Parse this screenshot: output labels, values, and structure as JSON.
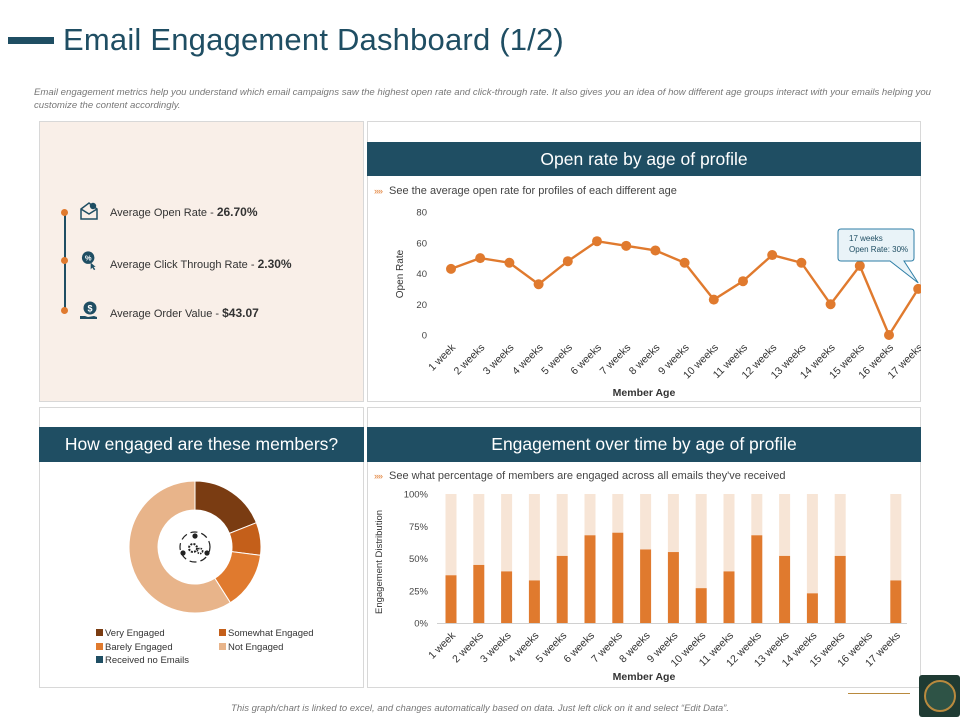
{
  "page": {
    "title": "Email Engagement Dashboard (1/2)",
    "description": "Email engagement metrics help you understand which email campaigns saw the highest open rate and click-through rate. It also gives you an idea of how different age groups interact with your emails helping you customize the content accordingly.",
    "footer": "This graph/chart is linked to excel, and changes automatically based on data. Just left click on it and select “Edit Data”."
  },
  "metrics": [
    {
      "label": "Average Open Rate",
      "value": "26.70%",
      "icon": "envelope-icon"
    },
    {
      "label": "Average Click Through Rate",
      "value": "2.30%",
      "icon": "percent-click-icon"
    },
    {
      "label": "Average Order Value",
      "value": "$43.07",
      "icon": "dollar-hand-icon"
    }
  ],
  "metric_separator": " - ",
  "panels": {
    "open_rate": {
      "title": "Open rate by age of profile",
      "subtitle": "See the average open rate for profiles of each different age",
      "callout_line1": "17 weeks",
      "callout_line2": "Open Rate:  30%"
    },
    "engaged": {
      "title": "How engaged are these members?"
    },
    "over_time": {
      "title": "Engagement over time by age of profile",
      "subtitle": "See what percentage of members are engaged across all emails they've received"
    }
  },
  "subtitle_marker": "››››",
  "colors": {
    "navy": "#1f4e63",
    "orange": "#e07a2e",
    "light_peach": "#f7e5d6",
    "brown": "#7a3c12",
    "mid_orange": "#c45f1a",
    "peach": "#e8b48a"
  },
  "chart_data": [
    {
      "type": "line",
      "title": "Open rate by age of profile",
      "xlabel": "Member Age",
      "ylabel": "Open Rate",
      "ylim": [
        0,
        80
      ],
      "yticks": [
        0,
        20,
        40,
        60,
        80
      ],
      "categories": [
        "1 week",
        "2 weeks",
        "3 weeks",
        "4 weeks",
        "5 weeks",
        "6 weeks",
        "7 weeks",
        "8 weeks",
        "9 weeks",
        "10 weeks",
        "11 weeks",
        "12 weeks",
        "13 weeks",
        "14 weeks",
        "15 weeks",
        "16 weeks",
        "17 weeks"
      ],
      "values": [
        43,
        50,
        47,
        33,
        48,
        61,
        58,
        55,
        47,
        23,
        35,
        52,
        47,
        20,
        45,
        0,
        30
      ]
    },
    {
      "type": "pie",
      "title": "How engaged are these members?",
      "donut": true,
      "labels": [
        "Very Engaged",
        "Somewhat Engaged",
        "Barely Engaged",
        "Not Engaged",
        "Received no Emails"
      ],
      "values": [
        19,
        8,
        14,
        59,
        0
      ],
      "colors": [
        "#7a3c12",
        "#c45f1a",
        "#e07a2e",
        "#e8b48a",
        "#1f4e63"
      ]
    },
    {
      "type": "bar",
      "stacked": true,
      "title": "Engagement over time by age of profile",
      "xlabel": "Member Age",
      "ylabel": "Engagement Distribution",
      "ylim": [
        0,
        100
      ],
      "yticks": [
        "0%",
        "25%",
        "50%",
        "75%",
        "100%"
      ],
      "categories": [
        "1 week",
        "2 weeks",
        "3 weeks",
        "4 weeks",
        "5 weeks",
        "6 weeks",
        "7 weeks",
        "8 weeks",
        "9 weeks",
        "10 weeks",
        "11 weeks",
        "12 weeks",
        "13 weeks",
        "14 weeks",
        "15 weeks",
        "16 weeks",
        "17 weeks"
      ],
      "series": [
        {
          "name": "Engaged",
          "color": "#e07a2e",
          "values": [
            37,
            45,
            40,
            33,
            52,
            68,
            70,
            57,
            55,
            27,
            40,
            68,
            52,
            23,
            52,
            0,
            33
          ]
        },
        {
          "name": "Not Engaged",
          "color": "#f7e5d6",
          "values": [
            63,
            55,
            60,
            67,
            48,
            32,
            30,
            43,
            45,
            73,
            60,
            32,
            48,
            77,
            48,
            0,
            67
          ]
        }
      ]
    }
  ]
}
